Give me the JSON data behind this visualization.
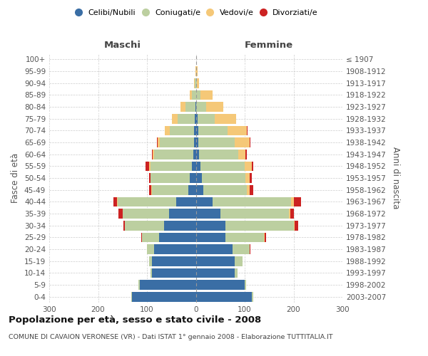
{
  "age_groups": [
    "0-4",
    "5-9",
    "10-14",
    "15-19",
    "20-24",
    "25-29",
    "30-34",
    "35-39",
    "40-44",
    "45-49",
    "50-54",
    "55-59",
    "60-64",
    "65-69",
    "70-74",
    "75-79",
    "80-84",
    "85-89",
    "90-94",
    "95-99",
    "100+"
  ],
  "birth_years": [
    "2003-2007",
    "1998-2002",
    "1993-1997",
    "1988-1992",
    "1983-1987",
    "1978-1982",
    "1973-1977",
    "1968-1972",
    "1963-1967",
    "1958-1962",
    "1953-1957",
    "1948-1952",
    "1943-1947",
    "1938-1942",
    "1933-1937",
    "1928-1932",
    "1923-1927",
    "1918-1922",
    "1913-1917",
    "1908-1912",
    "≤ 1907"
  ],
  "male": {
    "celibi": [
      130,
      115,
      90,
      90,
      85,
      75,
      65,
      55,
      40,
      15,
      12,
      8,
      5,
      3,
      3,
      2,
      1,
      0,
      0,
      0,
      0
    ],
    "coniugati": [
      2,
      2,
      3,
      5,
      15,
      35,
      80,
      95,
      120,
      75,
      80,
      85,
      80,
      70,
      50,
      35,
      20,
      8,
      2,
      0,
      0
    ],
    "vedovi": [
      0,
      0,
      0,
      0,
      0,
      0,
      0,
      0,
      1,
      1,
      1,
      2,
      3,
      5,
      10,
      12,
      10,
      5,
      2,
      1,
      0
    ],
    "divorziati": [
      0,
      0,
      0,
      0,
      0,
      1,
      3,
      8,
      8,
      5,
      3,
      8,
      2,
      1,
      1,
      0,
      0,
      0,
      0,
      0,
      0
    ]
  },
  "female": {
    "nubili": [
      115,
      100,
      80,
      80,
      75,
      60,
      60,
      50,
      35,
      15,
      12,
      10,
      7,
      5,
      5,
      3,
      1,
      0,
      0,
      0,
      0
    ],
    "coniugate": [
      3,
      3,
      5,
      15,
      35,
      80,
      140,
      140,
      160,
      90,
      90,
      90,
      80,
      75,
      60,
      35,
      20,
      10,
      2,
      1,
      0
    ],
    "vedove": [
      0,
      0,
      0,
      0,
      0,
      1,
      2,
      3,
      5,
      5,
      8,
      15,
      15,
      30,
      40,
      45,
      35,
      25,
      5,
      2,
      0
    ],
    "divorziate": [
      0,
      0,
      0,
      0,
      1,
      3,
      8,
      8,
      15,
      8,
      5,
      3,
      2,
      2,
      1,
      0,
      0,
      0,
      0,
      0,
      0
    ]
  },
  "colors": {
    "celibi": "#3a6ea5",
    "coniugati": "#bccfa0",
    "vedovi": "#f5c878",
    "divorziati": "#cc2222"
  },
  "xlim": 300,
  "title": "Popolazione per età, sesso e stato civile - 2008",
  "subtitle": "COMUNE DI CAVAION VERONESE (VR) - Dati ISTAT 1° gennaio 2008 - Elaborazione TUTTITALIA.IT",
  "ylabel_left": "Fasce di età",
  "ylabel_right": "Anni di nascita",
  "xlabel_maschi": "Maschi",
  "xlabel_femmine": "Femmine",
  "legend_labels": [
    "Celibi/Nubili",
    "Coniugati/e",
    "Vedovi/e",
    "Divorziati/e"
  ],
  "bg_color": "#ffffff",
  "grid_color": "#cccccc"
}
